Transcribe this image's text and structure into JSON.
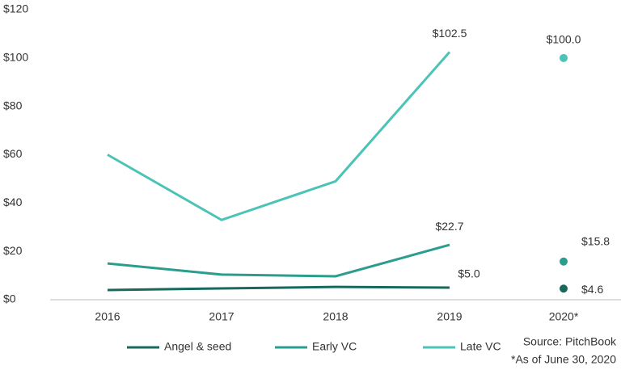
{
  "chart_data": {
    "type": "line",
    "categories": [
      "2016",
      "2017",
      "2018",
      "2019",
      "2020*"
    ],
    "dots_only_from": 4,
    "series": [
      {
        "name": "Angel & seed",
        "color": "#17695c",
        "values": [
          4.0,
          4.7,
          5.3,
          5.0,
          4.6
        ],
        "value_labels": [
          null,
          null,
          null,
          "$5.0",
          "$4.6"
        ]
      },
      {
        "name": "Early VC",
        "color": "#2b9d8e",
        "values": [
          15,
          10.4,
          9.7,
          22.7,
          15.8
        ],
        "value_labels": [
          null,
          null,
          null,
          "$22.7",
          "$15.8"
        ]
      },
      {
        "name": "Late VC",
        "color": "#4cc3b7",
        "values": [
          60,
          33,
          49,
          102.5,
          100.0
        ],
        "value_labels": [
          null,
          null,
          null,
          "$102.5",
          "$100.0"
        ]
      }
    ],
    "ylim": [
      0,
      120
    ],
    "yticks": [
      {
        "value": 0,
        "label": "$0"
      },
      {
        "value": 20,
        "label": "$20"
      },
      {
        "value": 40,
        "label": "$40"
      },
      {
        "value": 60,
        "label": "$60"
      },
      {
        "value": 80,
        "label": "$80"
      },
      {
        "value": 100,
        "label": "$100"
      },
      {
        "value": 120,
        "label": "$120"
      }
    ],
    "grid": false,
    "source": "Source: PitchBook",
    "note": "*As of June 30, 2020"
  }
}
